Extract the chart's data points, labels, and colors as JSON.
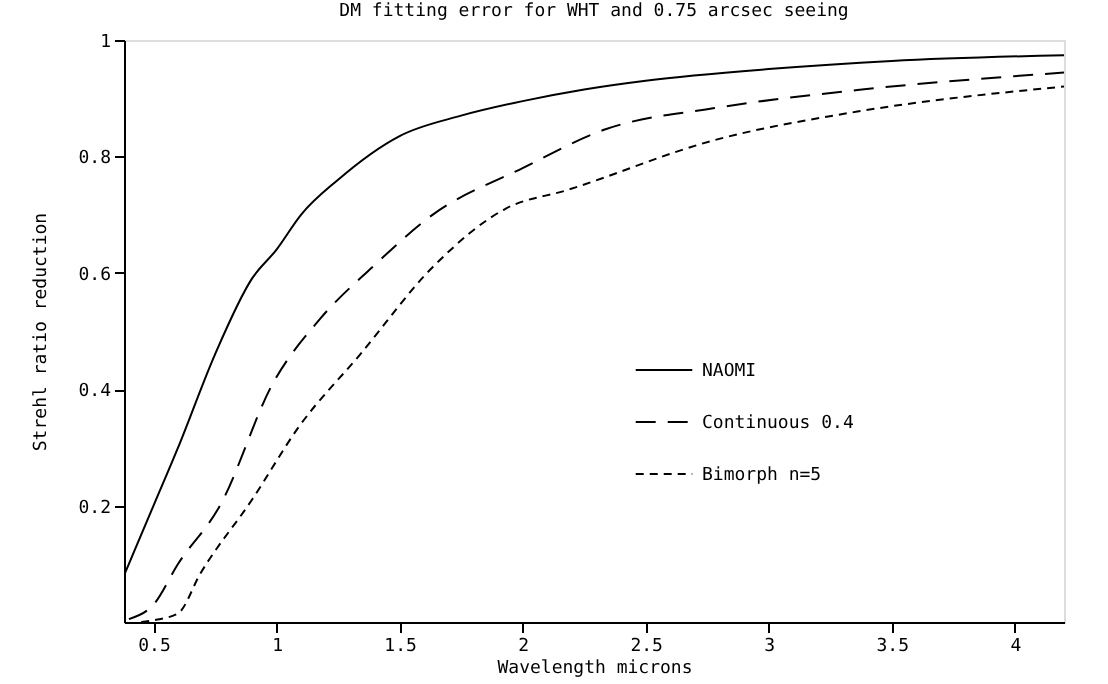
{
  "chart_data": {
    "type": "line",
    "title": "DM  fitting  error  for  WHT  and  0.75  arcsec  seeing",
    "xlabel": "Wavelength  microns",
    "ylabel": "Strehl  ratio  reduction",
    "xlim": [
      0.38,
      4.2
    ],
    "ylim": [
      0,
      1
    ],
    "xticks": [
      0.5,
      1,
      1.5,
      2,
      2.5,
      3,
      3.5,
      4
    ],
    "yticks": [
      0.2,
      0.4,
      0.6,
      0.8,
      1
    ],
    "legend": "right",
    "grid": false,
    "series": [
      {
        "name": "NAOMI",
        "color": "#000000",
        "line_style": "solid",
        "x": [
          0.38,
          0.42,
          0.5,
          0.6,
          0.75,
          0.9,
          1.0,
          1.1,
          1.25,
          1.5,
          1.75,
          2.0,
          2.25,
          2.5,
          3.0,
          3.5,
          4.2
        ],
        "values": [
          0.08,
          0.12,
          0.2,
          0.3,
          0.46,
          0.59,
          0.64,
          0.7,
          0.76,
          0.835,
          0.87,
          0.895,
          0.915,
          0.93,
          0.95,
          0.964,
          0.974
        ]
      },
      {
        "name": "Continuous    0.4",
        "color": "#000000",
        "line_style": "dashed",
        "x": [
          0.4,
          0.5,
          0.6,
          0.77,
          0.985,
          1.175,
          1.39,
          1.635,
          2.0,
          2.34,
          2.78,
          3.36,
          4.2
        ],
        "values": [
          0.005,
          0.03,
          0.1,
          0.2,
          0.41,
          0.52,
          0.61,
          0.7,
          0.78,
          0.847,
          0.883,
          0.914,
          0.944
        ]
      },
      {
        "name": "Bimorph   n=5",
        "color": "#000000",
        "line_style": "dotted",
        "x": [
          0.45,
          0.5,
          0.6,
          0.69,
          0.9,
          1.09,
          1.34,
          1.635,
          1.93,
          2.18,
          2.78,
          3.36,
          4.2
        ],
        "values": [
          0.0,
          0.003,
          0.015,
          0.083,
          0.21,
          0.335,
          0.46,
          0.61,
          0.71,
          0.742,
          0.828,
          0.877,
          0.92
        ]
      }
    ]
  }
}
